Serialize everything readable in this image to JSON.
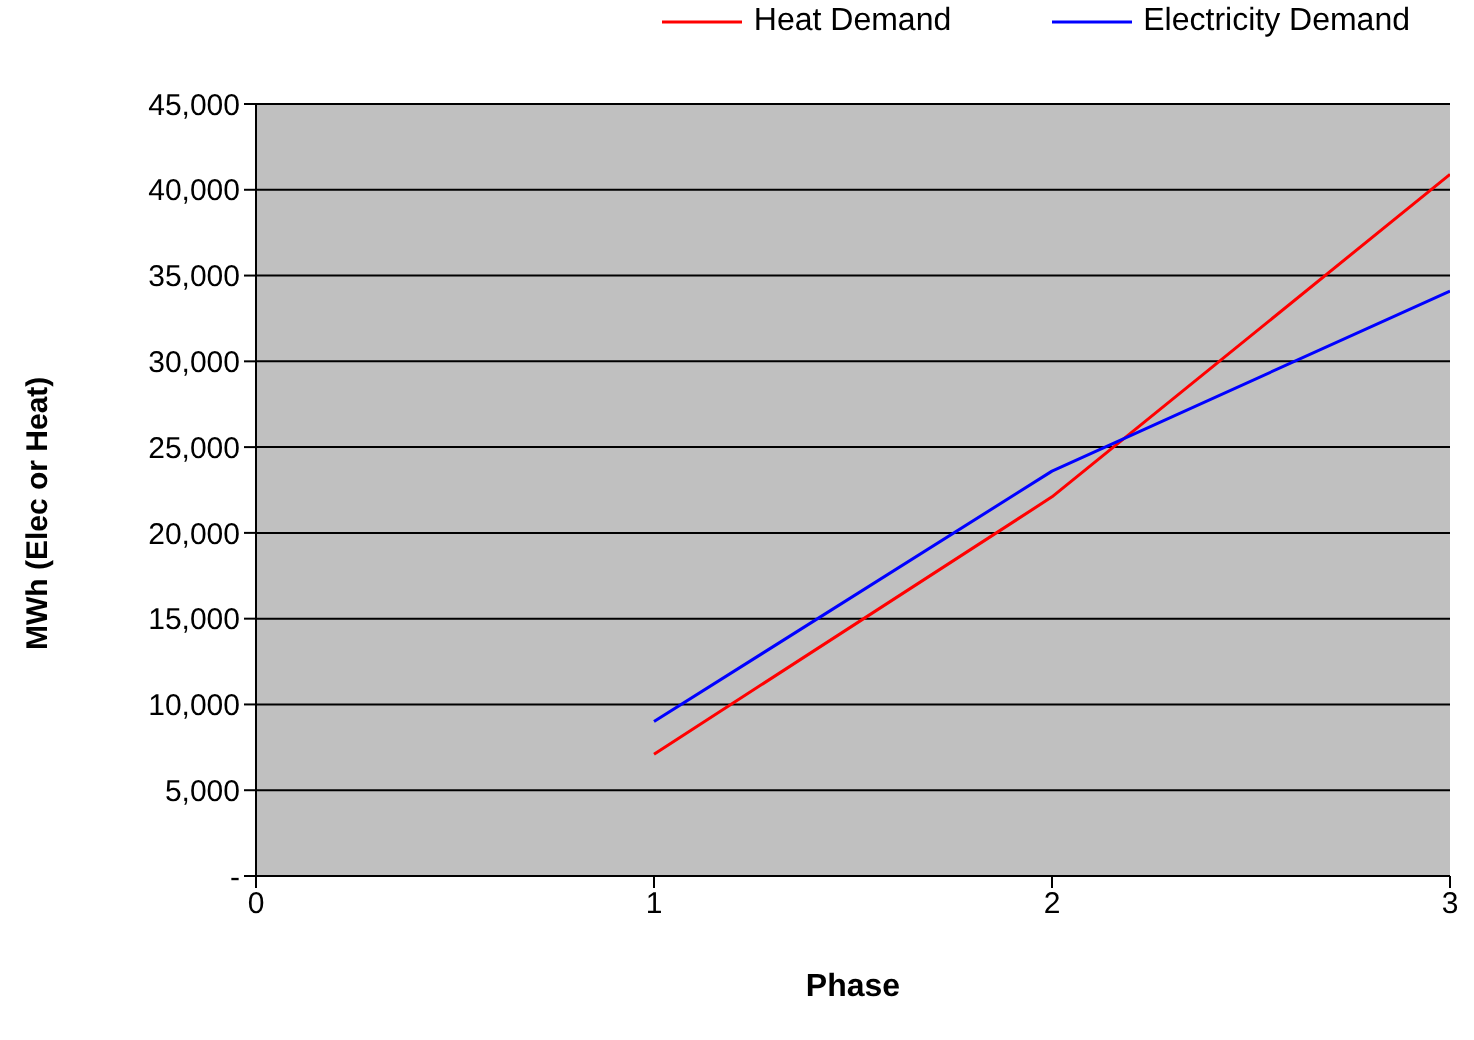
{
  "chart_data": {
    "type": "line",
    "xlabel": "Phase",
    "ylabel": "MWh (Elec or Heat)",
    "x": [
      1,
      2,
      3
    ],
    "series": [
      {
        "name": "Heat Demand",
        "color": "#ff0000",
        "values": [
          7100,
          22100,
          40900
        ]
      },
      {
        "name": "Electricity Demand",
        "color": "#0000ff",
        "values": [
          9000,
          23600,
          34100
        ]
      }
    ],
    "xlim": [
      0,
      3
    ],
    "xticks": [
      0,
      1,
      2,
      3
    ],
    "ylim": [
      0,
      45000
    ],
    "yticks": [
      {
        "value": 0,
        "label": "-"
      },
      {
        "value": 5000,
        "label": "5,000"
      },
      {
        "value": 10000,
        "label": "10,000"
      },
      {
        "value": 15000,
        "label": "15,000"
      },
      {
        "value": 20000,
        "label": "20,000"
      },
      {
        "value": 25000,
        "label": "25,000"
      },
      {
        "value": 30000,
        "label": "30,000"
      },
      {
        "value": 35000,
        "label": "35,000"
      },
      {
        "value": 40000,
        "label": "40,000"
      },
      {
        "value": 45000,
        "label": "45,000"
      }
    ],
    "grid": "y",
    "legend": "top",
    "marker": "none",
    "line_style": "solid"
  }
}
